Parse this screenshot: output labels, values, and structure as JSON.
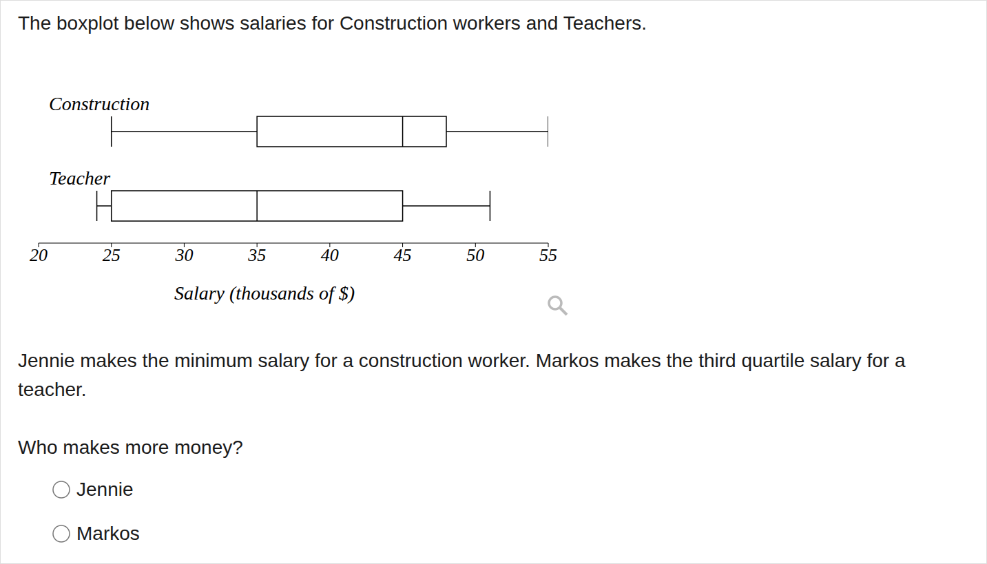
{
  "chart_data": {
    "type": "box",
    "xlabel": "Salary (thousands of $)",
    "color": "#000000",
    "xlim": [
      20,
      55
    ],
    "xticks": [
      20,
      25,
      30,
      35,
      40,
      45,
      50,
      55
    ],
    "boxes": [
      {
        "name": "Construction",
        "min": 25,
        "q1": 35,
        "median": 45,
        "q3": 48,
        "max": 55
      },
      {
        "name": "Teacher",
        "min": 24,
        "q1": 25,
        "median": 35,
        "q3": 45,
        "max": 51
      }
    ]
  },
  "page": {
    "intro": "The boxplot below shows salaries for Construction workers and Teachers.",
    "question_text": "Jennie makes the minimum salary for a construction worker. Markos makes the third quartile salary for a teacher.",
    "question": "Who makes more money?",
    "options": [
      "Jennie",
      "Markos"
    ]
  }
}
